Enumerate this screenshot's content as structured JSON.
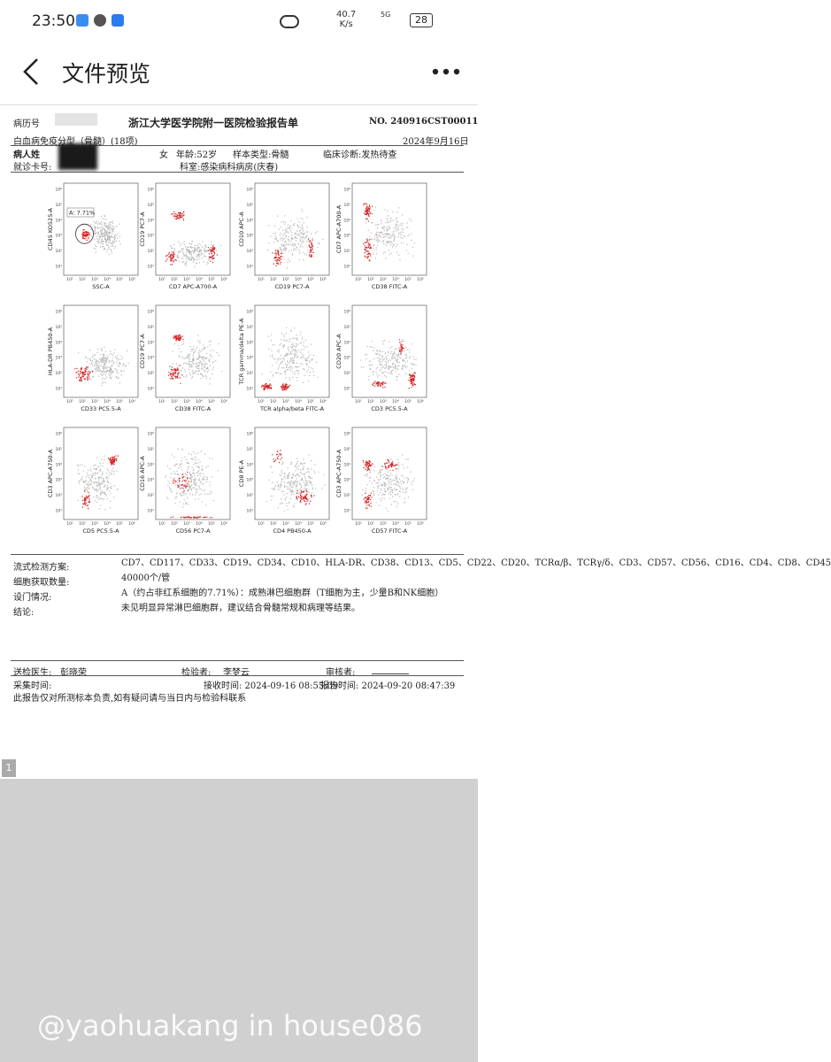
{
  "status_bar": {
    "time": "23:50",
    "speed": "40.7",
    "speed_unit": "K/s",
    "network": "5G",
    "battery": "28"
  },
  "app_bar": {
    "title": "文件预览"
  },
  "report": {
    "record_no_label": "病历号",
    "title": "浙江大学医学院附一医院检验报告单",
    "report_no": "NO. 240916CST00011",
    "test_name": "白血病免疫分型（骨髓）(18项)",
    "date": "2024年9月16日",
    "patient_label": "病人姓",
    "sex": "女",
    "age": "年龄:52岁",
    "sample_type": "样本类型:骨髓",
    "diagnosis": "临床诊断:发热待查",
    "card_label": "就诊卡号:",
    "department": "科室:感染病科病房(庆春)",
    "axis_ticks": [
      "10¹",
      "10²",
      "10³",
      "10⁴",
      "10⁵",
      "10⁶"
    ],
    "plots": [
      {
        "y_label": "CD45 KO525-A",
        "x_label": "SSC-A",
        "gate_label": "A: 7.71%"
      },
      {
        "y_label": "CD19 PC7-A",
        "x_label": "CD7 APC-A700-A"
      },
      {
        "y_label": "CD10 APC-A",
        "x_label": "CD19 PC7-A"
      },
      {
        "y_label": "CD7 APC-A700-A",
        "x_label": "CD38 FITC-A"
      },
      {
        "y_label": "HLA-DR PB450-A",
        "x_label": "CD33 PC5.5-A"
      },
      {
        "y_label": "CD19 PC7-A",
        "x_label": "CD38 FITC-A"
      },
      {
        "y_label": "TCR gamma/delta PE-A",
        "x_label": "TCR alpha/beta FITC-A"
      },
      {
        "y_label": "CD20 APC-A",
        "x_label": "CD3 PC5.5-A"
      },
      {
        "y_label": "CD3 APC-A750-A",
        "x_label": "CD5 PC5.5-A"
      },
      {
        "y_label": "CD16 APC-A",
        "x_label": "CD56 PC7-A"
      },
      {
        "y_label": "CD8 PE-A",
        "x_label": "CD4 PB450-A"
      },
      {
        "y_label": "CD3 APC-A750-A",
        "x_label": "CD57 FITC-A"
      }
    ],
    "results": [
      {
        "label": "流式检测方案:",
        "value": "CD7、CD117、CD33、CD19、CD34、CD10、HLA-DR、CD38、CD13、CD5、CD22、CD20、TCRα/β、TCRγ/δ、CD3、CD57、CD56、CD16、CD4、CD8、CD45"
      },
      {
        "label": "细胞获取数量:",
        "value": "40000个/管"
      },
      {
        "label": "设门情况:",
        "value": "A（约占非红系细胞的7.71%）：成熟淋巴细胞群（T细胞为主，少量B和NK细胞）"
      },
      {
        "label": "结论:",
        "value": "未见明显异常淋巴细胞群，建议结合骨髓常规和病理等结果。"
      }
    ],
    "footer": {
      "doctor_label": "送检医生:",
      "doctor": "彭晓荣",
      "tester_label": "检验者:",
      "tester": "李梦云",
      "reviewer_label": "审核者:",
      "collect_label": "采集时间:",
      "receive": "接收时间: 2024-09-16 08:55:09",
      "report_time": "报告时间: 2024-09-20 08:47:39",
      "disclaimer": "此报告仅对所测标本负责,如有疑问请与当日内与检验科联系"
    }
  },
  "page_indicator": "1",
  "watermark": "@yaohuakang in house086"
}
